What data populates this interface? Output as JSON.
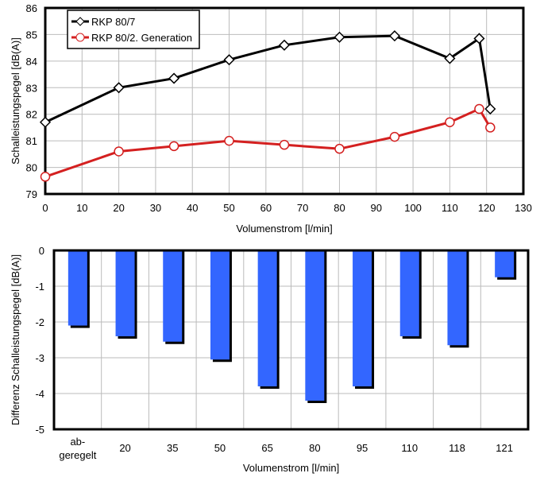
{
  "chart_data": [
    {
      "type": "line",
      "xlabel": "Volumenstrom [l/min]",
      "ylabel": "Schalleistungspegel [dB(A)]",
      "xlim": [
        0,
        130
      ],
      "ylim": [
        79,
        86
      ],
      "xticks": [
        0,
        10,
        20,
        30,
        40,
        50,
        60,
        70,
        80,
        90,
        100,
        110,
        120,
        130
      ],
      "yticks": [
        79,
        80,
        81,
        82,
        83,
        84,
        85,
        86
      ],
      "grid": true,
      "legend": "top-left",
      "series": [
        {
          "name": "RKP 80/7",
          "color": "#000000",
          "marker": "diamond",
          "x": [
            0,
            20,
            35,
            50,
            65,
            80,
            95,
            110,
            118,
            121
          ],
          "y": [
            81.7,
            83.0,
            83.35,
            84.05,
            84.6,
            84.9,
            84.95,
            84.1,
            84.85,
            82.2
          ]
        },
        {
          "name": "RKP 80/2. Generation",
          "color": "#d42020",
          "marker": "circle",
          "x": [
            0,
            20,
            35,
            50,
            65,
            80,
            95,
            110,
            118,
            121
          ],
          "y": [
            79.65,
            80.6,
            80.8,
            81.0,
            80.85,
            80.7,
            81.15,
            81.7,
            82.2,
            81.5
          ]
        }
      ]
    },
    {
      "type": "bar",
      "xlabel": "Volumenstrom [l/min]",
      "ylabel": "Differenz Schalleistungspegel [dB(A)]",
      "ylim": [
        -5,
        0
      ],
      "yticks": [
        0,
        -1,
        -2,
        -3,
        -4,
        -5
      ],
      "grid": true,
      "color": "#3366ff",
      "categories": [
        "ab-\ngeregelt",
        "20",
        "35",
        "50",
        "65",
        "80",
        "95",
        "110",
        "118",
        "121"
      ],
      "values": [
        -2.1,
        -2.4,
        -2.55,
        -3.05,
        -3.8,
        -4.2,
        -3.8,
        -2.4,
        -2.65,
        -0.75
      ]
    }
  ]
}
